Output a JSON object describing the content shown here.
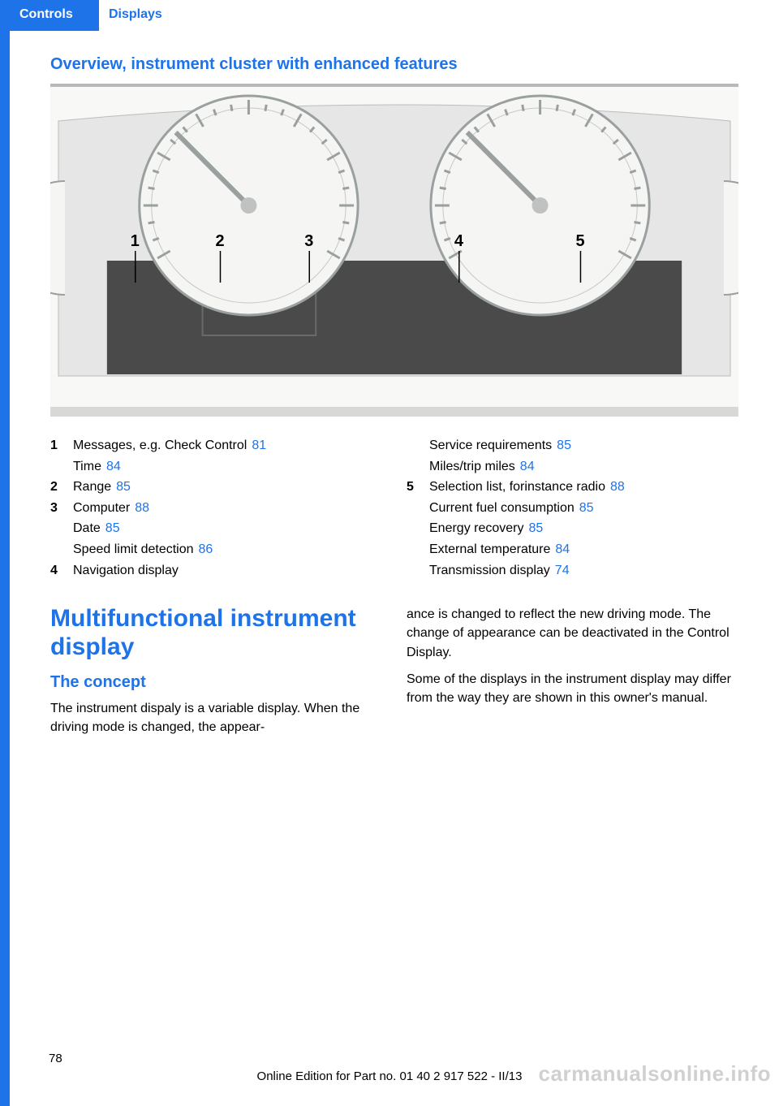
{
  "header": {
    "tab_controls": "Controls",
    "tab_displays": "Displays"
  },
  "section_title": "Overview, instrument cluster with enhanced features",
  "figure": {
    "callout_positions_x": [
      105,
      210,
      320,
      505,
      655
    ],
    "callout_labels": [
      "1",
      "2",
      "3",
      "4",
      "5"
    ],
    "body_fill": "#e6e6e6",
    "dial_stroke": "#9aa0a0",
    "needle_stroke": "#9aa0a0",
    "label_stroke": "#000000",
    "dark_panel": "#4a4a4a",
    "glow_fill": "#f5f5f3"
  },
  "legend": {
    "left": [
      {
        "num": "1",
        "text": "Messages, e.g. Check Control",
        "ref": "81",
        "sub": [
          {
            "text": "Time",
            "ref": "84"
          }
        ]
      },
      {
        "num": "2",
        "text": "Range",
        "ref": "85"
      },
      {
        "num": "3",
        "text": "Computer",
        "ref": "88",
        "sub": [
          {
            "text": "Date",
            "ref": "85"
          },
          {
            "text": "Speed limit detection",
            "ref": "86"
          }
        ]
      },
      {
        "num": "4",
        "text": "Navigation display"
      }
    ],
    "right": [
      {
        "sub_only": [
          {
            "text": "Service requirements",
            "ref": "85"
          },
          {
            "text": "Miles/trip miles",
            "ref": "84"
          }
        ]
      },
      {
        "num": "5",
        "text": "Selection list, forinstance radio",
        "ref": "88",
        "sub": [
          {
            "text": "Current fuel consumption",
            "ref": "85"
          },
          {
            "text": "Energy recovery",
            "ref": "85"
          },
          {
            "text": "External temperature",
            "ref": "84"
          },
          {
            "text": "Transmission display",
            "ref": "74"
          }
        ]
      }
    ]
  },
  "body": {
    "h1": "Multifunctional instrument display",
    "h2": "The concept",
    "left_para": "The instrument dispaly is a variable display. When the driving mode is changed, the appear‐",
    "right_para1": "ance is changed to reflect the new driving mode. The change of appearance can be deactivated in the Control Display.",
    "right_para2": "Some of the displays in the instrument display may differ from the way they are shown in this owner's manual."
  },
  "footer": {
    "page_number": "78",
    "edition": "Online Edition for Part no. 01 40 2 917 522 - II/13",
    "watermark": "carmanualsonline.info"
  }
}
